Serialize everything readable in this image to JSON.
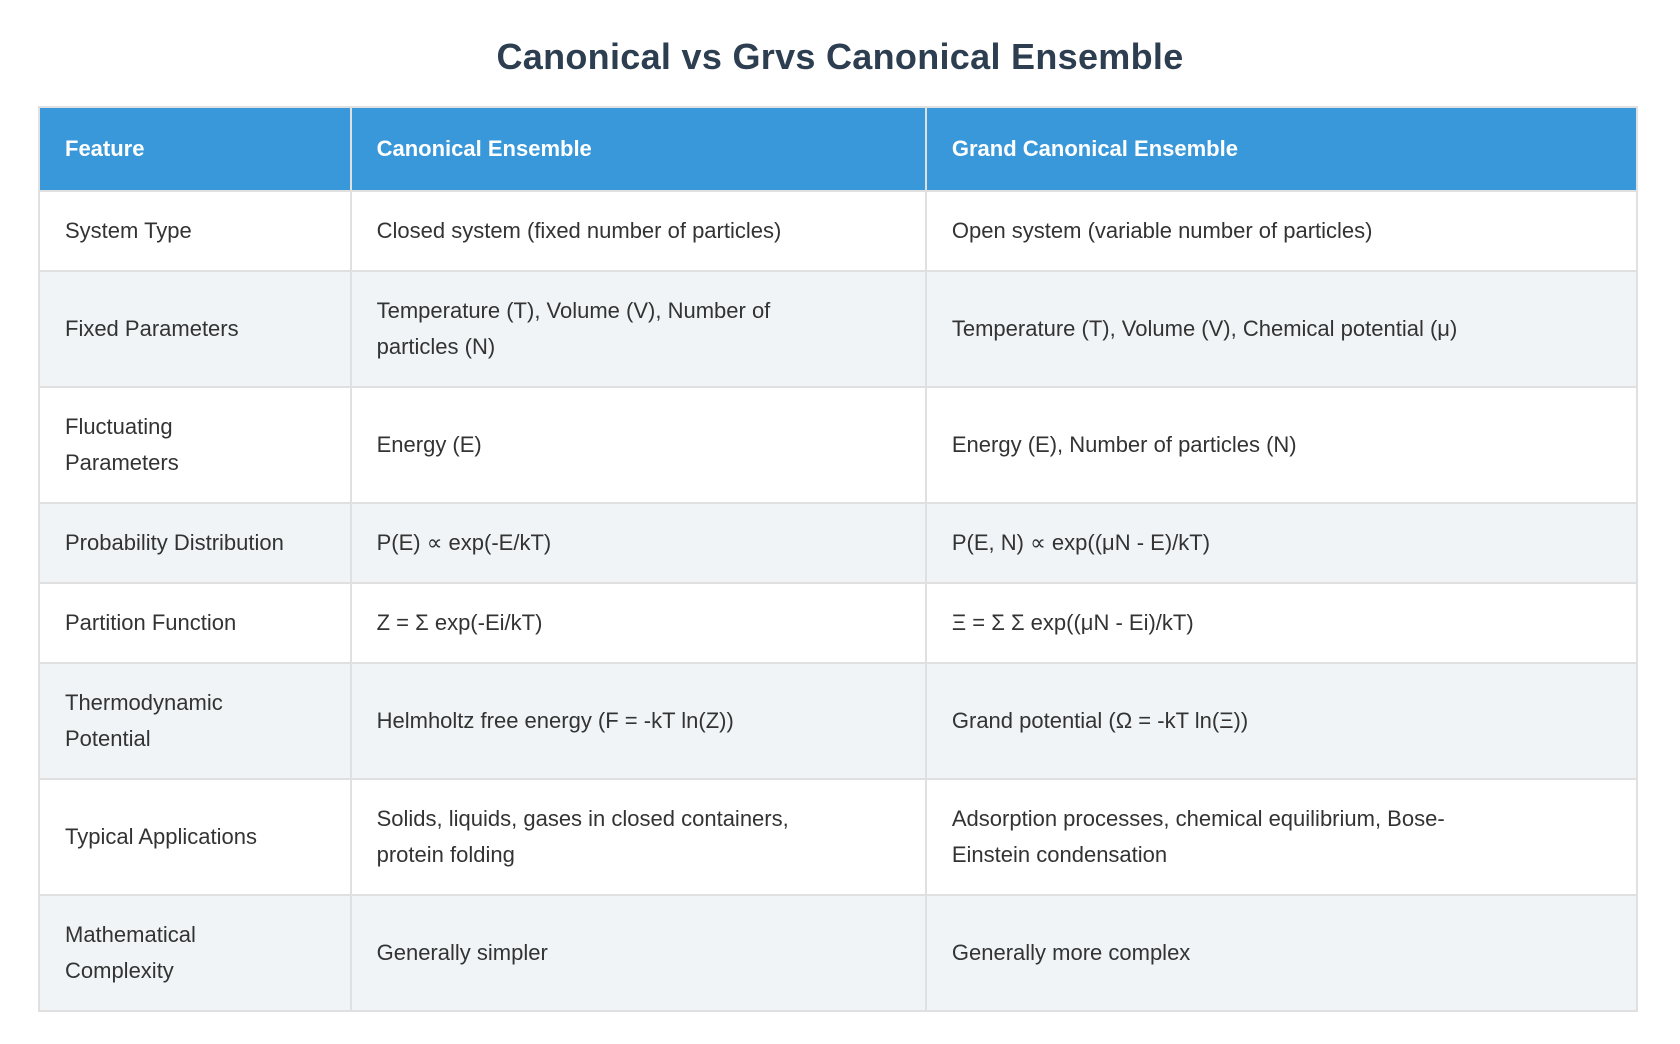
{
  "page": {
    "title": "Canonical vs Grvs Canonical Ensemble"
  },
  "colors": {
    "header_bg": "#3998da",
    "header_text": "#ffffff",
    "title_text": "#2c3e50",
    "body_text": "#333333",
    "row_bg": "#ffffff",
    "row_alt_bg": "#f0f4f7",
    "border": "#e0e0e0"
  },
  "chart_data": {
    "type": "table",
    "title": "Canonical vs Grvs Canonical Ensemble",
    "legend_position": "none",
    "columns": [
      "Feature",
      "Canonical Ensemble",
      "Grand Canonical Ensemble"
    ],
    "rows": [
      {
        "feature": "System Type",
        "canonical": "Closed system (fixed number of particles)",
        "grand": "Open system (variable number of particles)"
      },
      {
        "feature": "Fixed Parameters",
        "canonical": "Temperature (T), Volume (V), Number of\nparticles (N)",
        "grand": "Temperature (T), Volume (V), Chemical potential (μ)"
      },
      {
        "feature": "Fluctuating\nParameters",
        "canonical": "Energy (E)",
        "grand": "Energy (E), Number of particles (N)"
      },
      {
        "feature": "Probability Distribution",
        "canonical": "P(E) ∝ exp(-E/kT)",
        "grand": "P(E, N) ∝ exp((μN - E)/kT)"
      },
      {
        "feature": "Partition Function",
        "canonical": "Z = Σ exp(-Ei/kT)",
        "grand": "Ξ = Σ Σ exp((μN - Ei)/kT)"
      },
      {
        "feature": "Thermodynamic\nPotential",
        "canonical": "Helmholtz free energy (F = -kT ln(Z))",
        "grand": "Grand potential (Ω = -kT ln(Ξ))"
      },
      {
        "feature": "Typical Applications",
        "canonical": "Solids, liquids, gases in closed containers,\nprotein folding",
        "grand": "Adsorption processes, chemical equilibrium, Bose-\nEinstein condensation"
      },
      {
        "feature": "Mathematical\nComplexity",
        "canonical": "Generally simpler",
        "grand": "Generally more complex"
      }
    ]
  }
}
